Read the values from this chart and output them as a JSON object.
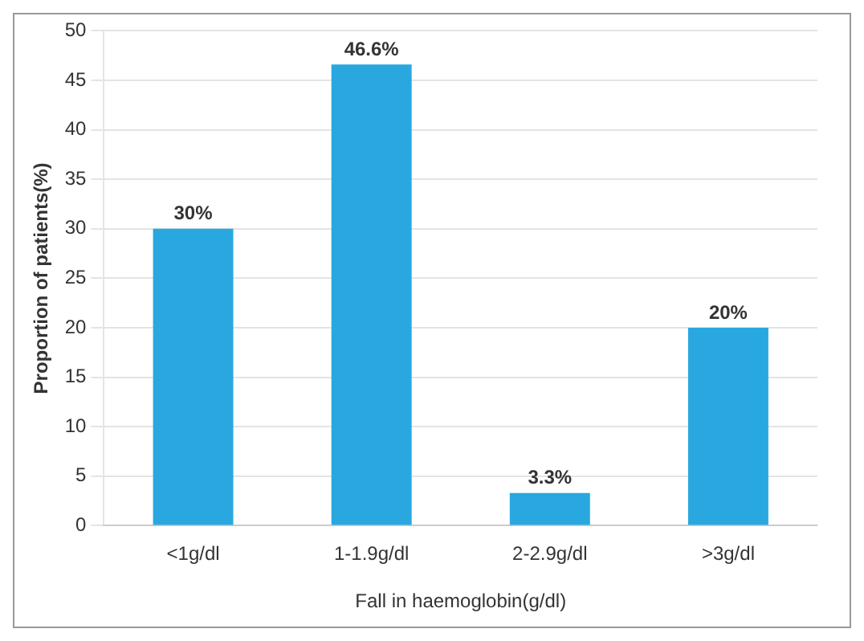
{
  "chart_data": {
    "type": "bar",
    "xlabel": "Fall in haemoglobin(g/dl)",
    "ylabel": "Proportion of patients(%)",
    "categories": [
      "<1g/dl",
      "1-1.9g/dl",
      "2-2.9g/dl",
      ">3g/dl"
    ],
    "values": [
      30,
      46.6,
      3.3,
      20
    ],
    "value_labels": [
      "30%",
      "46.6%",
      "3.3%",
      "20%"
    ],
    "color": "#29a8e0",
    "ylim": [
      0,
      50
    ],
    "yticks": [
      0,
      5,
      10,
      15,
      20,
      25,
      30,
      35,
      40,
      45,
      50
    ],
    "grid": "y"
  }
}
